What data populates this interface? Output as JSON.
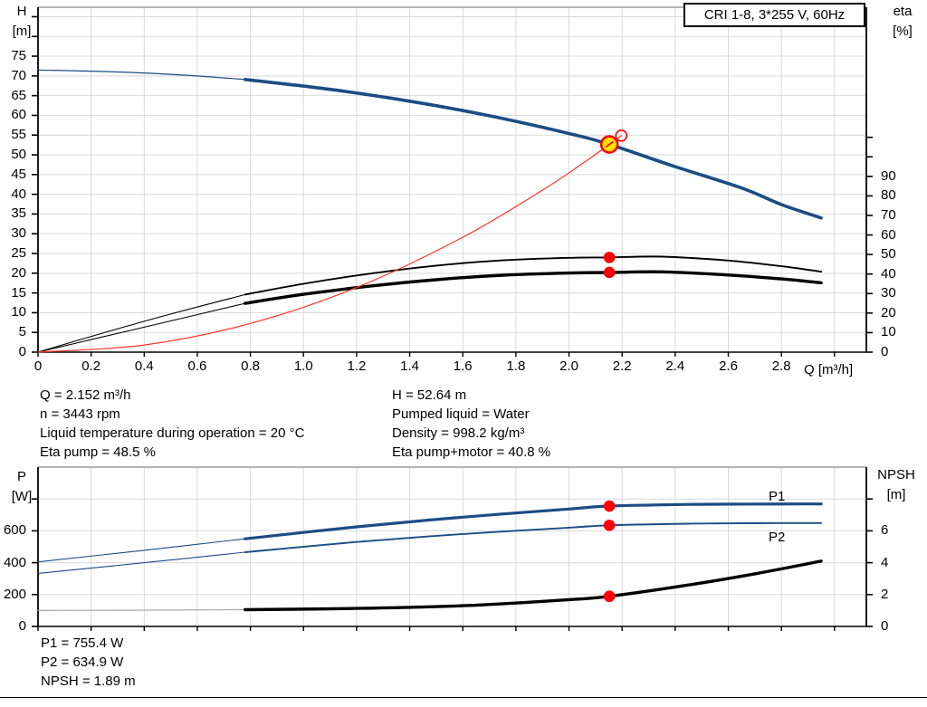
{
  "header": {
    "box_label": "CRI 1-8, 3*255 V, 60Hz"
  },
  "annotations": {
    "left": [
      "Q = 2.152 m³/h",
      "n = 3443 rpm",
      "Liquid temperature during operation = 20 °C",
      "Eta pump = 48.5 %"
    ],
    "right": [
      "H = 52.64 m",
      "Pumped liquid = Water",
      "Density = 998.2 kg/m³",
      "Eta pump+motor = 40.8 %"
    ],
    "bottom": [
      "P1 = 755.4 W",
      "P2 = 634.9 W",
      "NPSH = 1.89 m"
    ]
  },
  "colors": {
    "curve_blue": "#1b4c85",
    "curve_black": "#000000",
    "system_red": "#ff3028",
    "marker_red": "#fb0007",
    "duty_yellow": "#ffe100",
    "grid": "#d9d9d9",
    "frame_gray": "#9c9c9c",
    "ext_gray": "#a8a8a8"
  },
  "chart_data": [
    {
      "type": "line",
      "title": "CRI 1-8 pump performance curve",
      "xlabel": "Q [m³/h]",
      "ylabel_left": [
        "H",
        "[m]"
      ],
      "ylabel_right": [
        "eta",
        "[%]"
      ],
      "xlim": [
        0,
        3.12
      ],
      "ylim_left": [
        0,
        87.4
      ],
      "ylim_right": [
        0,
        176.6
      ],
      "x_tick_values": [
        0,
        0.2,
        0.4,
        0.6,
        0.8,
        1.0,
        1.2,
        1.4,
        1.6,
        1.8,
        2.0,
        2.2,
        2.4,
        2.6,
        2.8,
        3.0
      ],
      "x_tick_labels": [
        "0",
        "0.2",
        "0.4",
        "0.6",
        "0.8",
        "1.0",
        "1.2",
        "1.4",
        "1.6",
        "1.8",
        "2.0",
        "2.2",
        "2.4",
        "2.6",
        "2.8",
        ""
      ],
      "y_left_tick_values": [
        0,
        5,
        10,
        15,
        20,
        25,
        30,
        35,
        40,
        45,
        50,
        55,
        60,
        65,
        70,
        75,
        80,
        85
      ],
      "y_left_tick_labels": [
        "0",
        "5",
        "10",
        "15",
        "20",
        "25",
        "30",
        "35",
        "40",
        "45",
        "50",
        "55",
        "60",
        "65",
        "70",
        "75",
        "",
        ""
      ],
      "y_right_tick_values": [
        0,
        10,
        20,
        30,
        40,
        50,
        60,
        70,
        80,
        90,
        100,
        110
      ],
      "y_right_tick_labels": [
        "0",
        "10",
        "20",
        "30",
        "40",
        "50",
        "60",
        "70",
        "80",
        "90",
        "",
        ""
      ],
      "grid": true,
      "series": [
        {
          "name": "pump-curve-ext",
          "axis": "left",
          "color": "#1b4c85",
          "width": 1.2,
          "points": [
            [
              0,
              71.5
            ],
            [
              0.3,
              71.0
            ],
            [
              0.55,
              70.2
            ],
            [
              0.78,
              69.1
            ]
          ]
        },
        {
          "name": "pump-curve",
          "axis": "left",
          "color": "#1b4c85",
          "width": 3.6,
          "points": [
            [
              0.78,
              69.1
            ],
            [
              1.1,
              66.6
            ],
            [
              1.4,
              63.6
            ],
            [
              1.7,
              59.9
            ],
            [
              2.0,
              55.4
            ],
            [
              2.152,
              52.64
            ],
            [
              2.4,
              47.0
            ],
            [
              2.65,
              41.6
            ],
            [
              2.8,
              37.4
            ],
            [
              2.95,
              34.0
            ]
          ]
        },
        {
          "name": "eta-pump-ext",
          "axis": "right",
          "color": "#000000",
          "width": 1.1,
          "points": [
            [
              0,
              0
            ],
            [
              0.25,
              10
            ],
            [
              0.5,
              19.5
            ],
            [
              0.78,
              29.5
            ]
          ]
        },
        {
          "name": "eta-pump",
          "axis": "right",
          "color": "#000000",
          "width": 1.9,
          "points": [
            [
              0.78,
              29.5
            ],
            [
              1.0,
              35.0
            ],
            [
              1.25,
              40.2
            ],
            [
              1.5,
              44.3
            ],
            [
              1.75,
              47.0
            ],
            [
              2.0,
              48.3
            ],
            [
              2.152,
              48.5
            ],
            [
              2.35,
              48.9
            ],
            [
              2.6,
              46.9
            ],
            [
              2.8,
              44.0
            ],
            [
              2.95,
              41.2
            ]
          ]
        },
        {
          "name": "eta-pump-motor-ext",
          "axis": "right",
          "color": "#000000",
          "width": 1.1,
          "points": [
            [
              0,
              0
            ],
            [
              0.25,
              8
            ],
            [
              0.5,
              16
            ],
            [
              0.78,
              25.0
            ]
          ]
        },
        {
          "name": "eta-pump-motor",
          "axis": "right",
          "color": "#000000",
          "width": 3.4,
          "points": [
            [
              0.78,
              25.0
            ],
            [
              1.0,
              29.6
            ],
            [
              1.25,
              33.8
            ],
            [
              1.5,
              37.1
            ],
            [
              1.75,
              39.4
            ],
            [
              2.0,
              40.5
            ],
            [
              2.152,
              40.8
            ],
            [
              2.35,
              41.1
            ],
            [
              2.6,
              39.5
            ],
            [
              2.8,
              37.5
            ],
            [
              2.95,
              35.5
            ]
          ]
        },
        {
          "name": "system-curve",
          "axis": "left",
          "color": "#ff3028",
          "width": 1.2,
          "points": [
            [
              0,
              0
            ],
            [
              0.4,
              1.82
            ],
            [
              0.8,
              7.27
            ],
            [
              1.2,
              16.37
            ],
            [
              1.6,
              29.1
            ],
            [
              1.9,
              41.03
            ],
            [
              2.05,
              47.77
            ],
            [
              2.152,
              52.64
            ],
            [
              2.197,
              54.86
            ]
          ]
        }
      ],
      "markers": [
        {
          "name": "target-point",
          "style": "open-red",
          "axis": "left",
          "q": 2.197,
          "v": 54.86
        },
        {
          "name": "duty-point",
          "style": "duty",
          "axis": "left",
          "q": 2.152,
          "v": 52.64
        },
        {
          "name": "eta-pump-point",
          "style": "red-dot",
          "axis": "right",
          "q": 2.152,
          "v": 48.5
        },
        {
          "name": "eta-pump-motor-point",
          "style": "red-dot",
          "axis": "right",
          "q": 2.152,
          "v": 40.8
        }
      ]
    },
    {
      "type": "line",
      "title": "Power and NPSH curves",
      "xlabel": "",
      "ylabel_left": [
        "P",
        "[W]"
      ],
      "ylabel_right": [
        "NPSH",
        "[m]"
      ],
      "xlim": [
        0,
        3.12
      ],
      "ylim_left": [
        0,
        1000
      ],
      "ylim_right": [
        0,
        10
      ],
      "x_tick_values": [
        0,
        0.2,
        0.4,
        0.6,
        0.8,
        1.0,
        1.2,
        1.4,
        1.6,
        1.8,
        2.0,
        2.2,
        2.4,
        2.6,
        2.8,
        3.0
      ],
      "x_tick_labels": [
        "",
        "",
        "",
        "",
        "",
        "",
        "",
        "",
        "",
        "",
        "",
        "",
        "",
        "",
        "",
        ""
      ],
      "y_left_tick_values": [
        0,
        200,
        400,
        600,
        800
      ],
      "y_left_tick_labels": [
        "0",
        "200",
        "400",
        "600",
        ""
      ],
      "y_right_tick_values": [
        0,
        2,
        4,
        6,
        8
      ],
      "y_right_tick_labels": [
        "0",
        "2",
        "4",
        "6",
        ""
      ],
      "grid": true,
      "curve_labels": [
        {
          "name": "p1-curve-label",
          "text": "P1"
        },
        {
          "name": "p2-curve-label",
          "text": "P2"
        }
      ],
      "series": [
        {
          "name": "p1-curve-ext",
          "axis": "left",
          "color": "#1b4c85",
          "width": 1.1,
          "points": [
            [
              0,
              405
            ],
            [
              0.4,
              478
            ],
            [
              0.78,
              550
            ]
          ]
        },
        {
          "name": "p1-curve",
          "axis": "left",
          "color": "#1b4c85",
          "width": 3.2,
          "points": [
            [
              0.78,
              550
            ],
            [
              1.2,
              625
            ],
            [
              1.6,
              686
            ],
            [
              2.0,
              737
            ],
            [
              2.152,
              755.4
            ],
            [
              2.45,
              766
            ],
            [
              2.7,
              768
            ],
            [
              2.95,
              769
            ]
          ]
        },
        {
          "name": "p2-curve-ext",
          "axis": "left",
          "color": "#1b4c85",
          "width": 1.1,
          "points": [
            [
              0,
              333
            ],
            [
              0.4,
              400
            ],
            [
              0.78,
              466
            ]
          ]
        },
        {
          "name": "p2-curve",
          "axis": "left",
          "color": "#1b4c85",
          "width": 1.9,
          "points": [
            [
              0.78,
              466
            ],
            [
              1.2,
              530
            ],
            [
              1.6,
              580
            ],
            [
              2.0,
              620
            ],
            [
              2.152,
              634.9
            ],
            [
              2.45,
              645
            ],
            [
              2.7,
              648
            ],
            [
              2.95,
              649
            ]
          ]
        },
        {
          "name": "npsh-curve-ext",
          "axis": "right",
          "color": "#a8a8a8",
          "width": 1.2,
          "points": [
            [
              0,
              1.0
            ],
            [
              0.4,
              1.02
            ],
            [
              0.78,
              1.05
            ]
          ]
        },
        {
          "name": "npsh-curve",
          "axis": "right",
          "color": "#000000",
          "width": 3.4,
          "points": [
            [
              0.78,
              1.05
            ],
            [
              1.2,
              1.13
            ],
            [
              1.6,
              1.3
            ],
            [
              2.0,
              1.68
            ],
            [
              2.152,
              1.89
            ],
            [
              2.45,
              2.6
            ],
            [
              2.7,
              3.3
            ],
            [
              2.95,
              4.1
            ]
          ]
        }
      ],
      "markers": [
        {
          "name": "p1-point",
          "style": "red-dot",
          "axis": "left",
          "q": 2.152,
          "v": 755.4
        },
        {
          "name": "p2-point",
          "style": "red-dot",
          "axis": "left",
          "q": 2.152,
          "v": 634.9
        },
        {
          "name": "npsh-point",
          "style": "red-dot",
          "axis": "right",
          "q": 2.152,
          "v": 1.89
        }
      ]
    }
  ]
}
